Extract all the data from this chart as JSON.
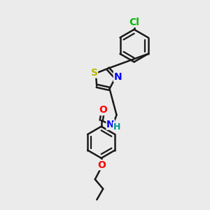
{
  "bg_color": "#ebebeb",
  "bond_color": "#1a1a1a",
  "bond_width": 1.8,
  "atom_colors": {
    "S": "#b8b800",
    "N": "#0000ff",
    "O": "#ff0000",
    "Cl": "#00bb00",
    "H": "#009999"
  },
  "font_size": 10,
  "fig_width": 3.0,
  "fig_height": 3.0,
  "dpi": 100,
  "xlim": [
    0,
    10
  ],
  "ylim": [
    0,
    10
  ]
}
